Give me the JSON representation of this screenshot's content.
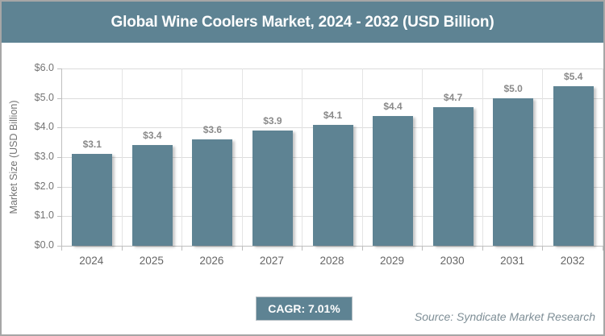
{
  "title": "Global Wine Coolers Market, 2024 - 2032 (USD Billion)",
  "chart_data": {
    "type": "bar",
    "title": "Global Wine Coolers Market, 2024 - 2032 (USD Billion)",
    "categories": [
      "2024",
      "2025",
      "2026",
      "2027",
      "2028",
      "2029",
      "2030",
      "2031",
      "2032"
    ],
    "values": [
      3.1,
      3.4,
      3.6,
      3.9,
      4.1,
      4.4,
      4.7,
      5.0,
      5.4
    ],
    "value_labels": [
      "$3.1",
      "$3.4",
      "$3.6",
      "$3.9",
      "$4.1",
      "$4.4",
      "$4.7",
      "$5.0",
      "$5.4"
    ],
    "xlabel": "",
    "ylabel": "Market Size (USD Billion)",
    "ylim": [
      0,
      6
    ],
    "ytick_step": 1,
    "ytick_labels": [
      "$0.0",
      "$1.0",
      "$2.0",
      "$3.0",
      "$4.0",
      "$5.0",
      "$6.0"
    ],
    "grid": true,
    "legend": "none",
    "bar_color": "#5e8393"
  },
  "footer": {
    "cagr_label": "CAGR: 7.01%",
    "source": "Source: Syndicate Market Research"
  },
  "colors": {
    "accent": "#5e8393",
    "header_bg": "#5e8393",
    "header_text": "#ffffff",
    "grid": "#dcdcdc",
    "axis": "#bfbfbf",
    "tick_label": "#737373",
    "bar_label": "#8a8a8a",
    "source_text": "#7e8e96",
    "frame_border": "#a6a6a6"
  }
}
